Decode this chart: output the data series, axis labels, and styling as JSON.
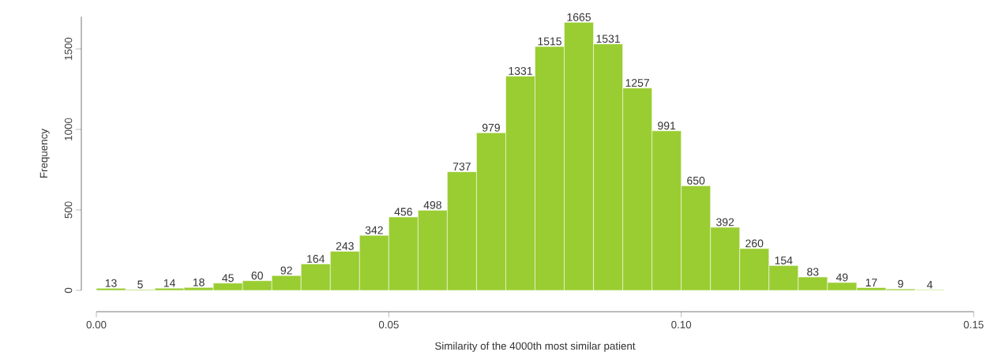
{
  "chart_data": {
    "type": "histogram",
    "xlabel": "Similarity of the 4000th most similar patient",
    "ylabel": "Frequency",
    "bins": [
      0,
      0.005,
      0.01,
      0.015,
      0.02,
      0.025,
      0.03,
      0.035,
      0.04,
      0.045,
      0.05,
      0.055,
      0.06,
      0.065,
      0.07,
      0.075,
      0.08,
      0.085,
      0.09,
      0.095,
      0.1,
      0.105,
      0.11,
      0.115,
      0.12,
      0.125,
      0.13,
      0.135,
      0.14,
      0.145
    ],
    "values": [
      13,
      5,
      14,
      18,
      45,
      60,
      92,
      164,
      243,
      342,
      456,
      498,
      737,
      979,
      1331,
      1515,
      1665,
      1531,
      1257,
      991,
      650,
      392,
      260,
      154,
      83,
      49,
      17,
      9,
      4
    ],
    "color": "#9acd32",
    "data_labels": true,
    "grid": false,
    "xlim": [
      0,
      0.15
    ],
    "xticks": [
      {
        "value": 0,
        "label": "0.00"
      },
      {
        "value": 0.05,
        "label": "0.05"
      },
      {
        "value": 0.1,
        "label": "0.10"
      },
      {
        "value": 0.15,
        "label": "0.15"
      }
    ],
    "ylim": [
      0,
      1700
    ],
    "yticks": [
      0,
      500,
      1000,
      1500
    ]
  }
}
